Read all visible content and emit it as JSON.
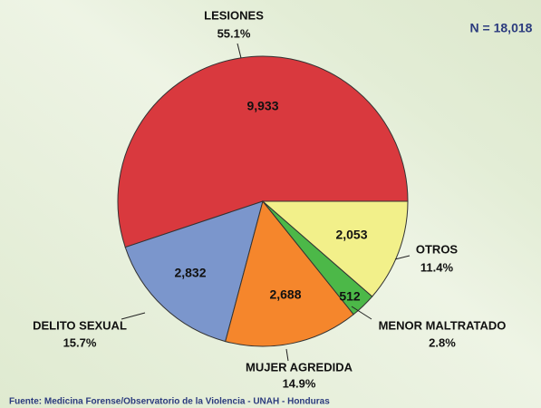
{
  "chart_data": {
    "type": "pie",
    "title": "N = 18,018",
    "source": "Fuente: Medicina Forense/Observatorio de la Violencia - UNAH - Honduras",
    "categories": [
      "LESIONES",
      "DELITO SEXUAL",
      "MUJER AGREDIDA",
      "MENOR MALTRATADO",
      "OTROS"
    ],
    "values": [
      9933,
      2832,
      2688,
      512,
      2053
    ],
    "value_labels": [
      "9,933",
      "2,832",
      "2,688",
      "512",
      "2,053"
    ],
    "percent_labels": [
      "55.1%",
      "15.7%",
      "14.9%",
      "2.8%",
      "11.4%"
    ],
    "colors": [
      "#d9393e",
      "#7b96cc",
      "#f5862c",
      "#4cb848",
      "#f2f08a"
    ]
  }
}
